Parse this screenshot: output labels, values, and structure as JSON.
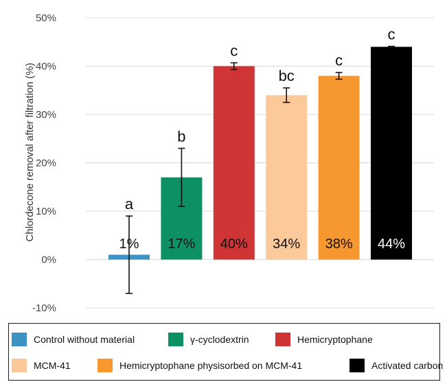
{
  "chart_data": {
    "type": "bar",
    "ylabel": "Chlordecone removal  after filtration (%)",
    "ylim": [
      -10,
      50
    ],
    "yticks": [
      -10,
      0,
      10,
      20,
      30,
      40,
      50
    ],
    "ytick_labels": [
      "-10%",
      "0%",
      "10%",
      "20%",
      "30%",
      "40%",
      "50%"
    ],
    "grid": true,
    "legend_position": "bottom",
    "categories": [
      "Control without material",
      "γ-cyclodextrin",
      "Hemicryptophane",
      "MCM-41",
      "Hemicryptophane physisorbed on MCM-41",
      "Activated carbon"
    ],
    "values": [
      1,
      17,
      40,
      34,
      38,
      44
    ],
    "data_labels": [
      "1%",
      "17%",
      "40%",
      "34%",
      "38%",
      "44%"
    ],
    "error": [
      8,
      6,
      0.7,
      1.5,
      0.7,
      0.1
    ],
    "significance_letters": [
      "a",
      "b",
      "c",
      "bc",
      "c",
      "c"
    ],
    "colors": [
      "#3a93c3",
      "#0e9065",
      "#cf3535",
      "#fcc99a",
      "#f7972f",
      "#000000"
    ],
    "label_colors": [
      "#111111",
      "#111111",
      "#111111",
      "#111111",
      "#111111",
      "#ffffff"
    ]
  }
}
